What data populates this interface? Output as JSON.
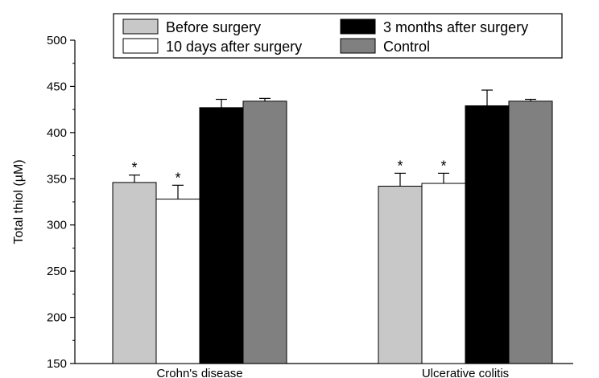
{
  "chart_data": {
    "type": "bar",
    "ylabel": "Total thiol (µM)",
    "ylim": [
      150,
      500
    ],
    "yticks": [
      150,
      200,
      250,
      300,
      350,
      400,
      450,
      500
    ],
    "grid": false,
    "legend_position": "top-center",
    "categories": [
      "Crohn's disease",
      "Ulcerative colitis"
    ],
    "series": [
      {
        "name": "Before surgery",
        "color": "#c8c8c8",
        "values": [
          346,
          342
        ],
        "errors": [
          8,
          14
        ],
        "significant": [
          "*",
          "*"
        ]
      },
      {
        "name": "10 days after surgery",
        "color": "#ffffff",
        "values": [
          328,
          345
        ],
        "errors": [
          15,
          11
        ],
        "significant": [
          "*",
          "*"
        ]
      },
      {
        "name": "3 months after surgery",
        "color": "#000000",
        "values": [
          427,
          429
        ],
        "errors": [
          9,
          17
        ],
        "significant": [
          "",
          ""
        ]
      },
      {
        "name": "Control",
        "color": "#808080",
        "values": [
          434,
          434
        ],
        "errors": [
          3,
          2
        ],
        "significant": [
          "",
          ""
        ]
      }
    ]
  }
}
